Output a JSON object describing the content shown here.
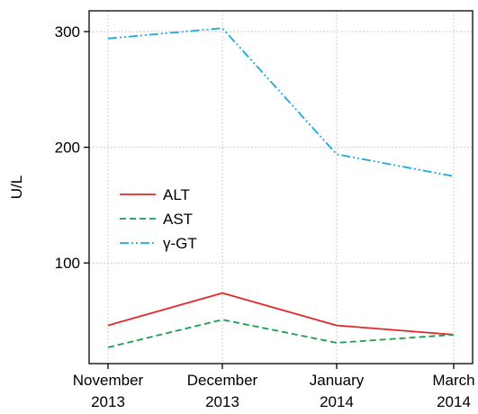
{
  "chart_data": {
    "type": "line",
    "categories": [
      [
        "November",
        "2013"
      ],
      [
        "December",
        "2013"
      ],
      [
        "January",
        "2014"
      ],
      [
        "March",
        "2014"
      ]
    ],
    "ylabel": "U/L",
    "yticks": [
      100,
      200,
      300
    ],
    "ylim": [
      13,
      318
    ],
    "grid": true,
    "legend_position": "center-left",
    "series": [
      {
        "name": "ALT",
        "color": "#e3262a",
        "style": "solid",
        "values": [
          46,
          74,
          46,
          38
        ]
      },
      {
        "name": "AST",
        "color": "#1a9e4a",
        "style": "dashed",
        "values": [
          27,
          51,
          31,
          38
        ]
      },
      {
        "name": "γ-GT",
        "color": "#1fa8dc",
        "style": "dashdot",
        "values": [
          294,
          303,
          194,
          175
        ]
      }
    ]
  }
}
